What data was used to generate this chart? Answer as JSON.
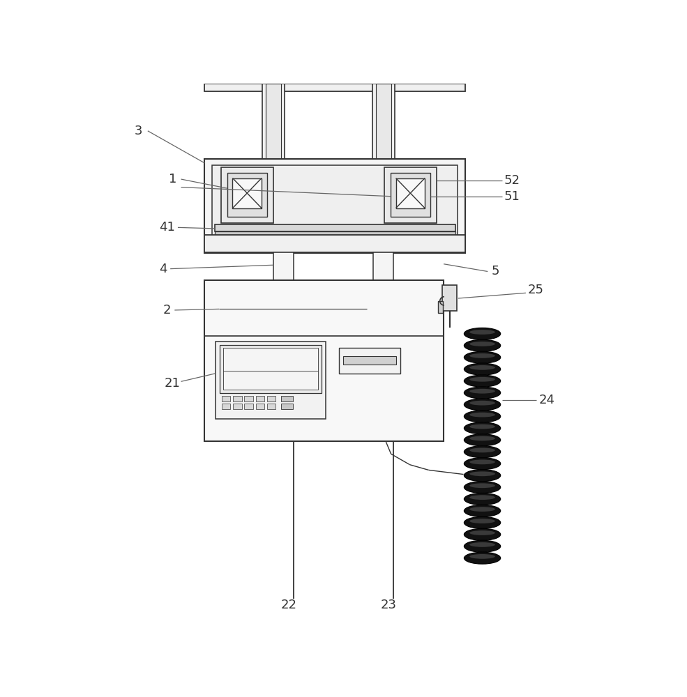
{
  "bg_color": "#ffffff",
  "line_color": "#666666",
  "dark_color": "#333333",
  "label_color": "#333333",
  "fig_width": 9.85,
  "fig_height": 10.0,
  "dpi": 100
}
